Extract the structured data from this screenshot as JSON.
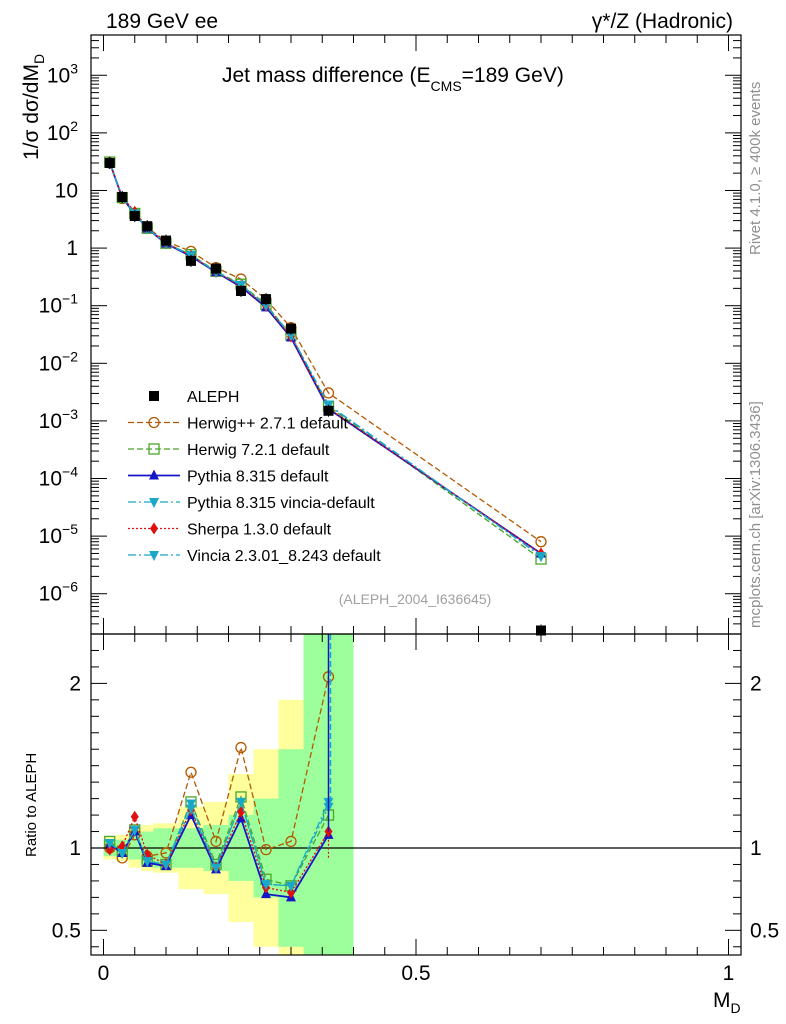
{
  "header": {
    "left": "189 GeV ee",
    "right": "γ*/Z (Hadronic)"
  },
  "side": {
    "rivet": "Rivet 4.1.0, ≥ 400k events",
    "mcplots": "mcplots.cern.ch [arXiv:1306.3436]"
  },
  "chart_data": {
    "type": "line",
    "title": "Jet mass difference (E",
    "title_sub": "CMS",
    "title_tail": "=189 GeV)",
    "watermark": "(ALEPH_2004_I636645)",
    "ylabel_main": "1/σ  dσ/dM",
    "ylabel_main_sub": "D",
    "ylabel_ratio": "Ratio to ALEPH",
    "xlabel": "M",
    "xlabel_sub": "D",
    "xlim": [
      -0.02,
      1.02
    ],
    "ylim_main": [
      2e-07,
      5000
    ],
    "ylim_ratio": [
      0.35,
      2.3
    ],
    "x_ticks": [
      "0",
      "0.5",
      "1"
    ],
    "x_tick_values": [
      0,
      0.5,
      1
    ],
    "y_ticks_main": [
      {
        "v": 1000,
        "base": "10",
        "exp": "3"
      },
      {
        "v": 100,
        "base": "10",
        "exp": "2"
      },
      {
        "v": 10,
        "base": "10",
        "exp": ""
      },
      {
        "v": 1,
        "base": "1",
        "exp": ""
      },
      {
        "v": 0.1,
        "base": "10",
        "exp": "−1"
      },
      {
        "v": 0.01,
        "base": "10",
        "exp": "−2"
      },
      {
        "v": 0.001,
        "base": "10",
        "exp": "−3"
      },
      {
        "v": 0.0001,
        "base": "10",
        "exp": "−4"
      },
      {
        "v": 1e-05,
        "base": "10",
        "exp": "−5"
      },
      {
        "v": 1e-06,
        "base": "10",
        "exp": "−6"
      }
    ],
    "y_ticks_ratio": [
      {
        "v": 0.5,
        "label": "0.5"
      },
      {
        "v": 1,
        "label": "1"
      },
      {
        "v": 2,
        "label": "2"
      }
    ],
    "x": [
      0.01,
      0.03,
      0.05,
      0.07,
      0.1,
      0.14,
      0.18,
      0.22,
      0.26,
      0.3,
      0.36,
      0.7
    ],
    "bin_edges": [
      0,
      0.02,
      0.04,
      0.06,
      0.08,
      0.12,
      0.16,
      0.2,
      0.24,
      0.28,
      0.32,
      0.4,
      1.0
    ],
    "band_inner": [
      0.05,
      0.05,
      0.07,
      0.1,
      0.12,
      0.12,
      0.14,
      0.2,
      0.3,
      0.6,
      2.0
    ],
    "band_outer": [
      0.07,
      0.08,
      0.12,
      0.14,
      0.15,
      0.25,
      0.28,
      0.45,
      0.6,
      0.9,
      2.0
    ],
    "data": {
      "name": "ALEPH",
      "values": [
        30,
        7.7,
        3.6,
        2.4,
        1.35,
        0.6,
        0.44,
        0.18,
        0.13,
        0.04,
        0.0015,
        2.3e-07
      ]
    },
    "series": [
      {
        "name": "Herwig++ 2.7.1 default",
        "color": "#b35900",
        "marker": "circle",
        "dash": "6,3",
        "ratio": [
          1.0,
          0.94,
          1.08,
          0.95,
          0.97,
          1.46,
          1.04,
          1.61,
          0.99,
          1.04,
          2.04
        ],
        "last": 8e-06
      },
      {
        "name": "Herwig 7.2.1 default",
        "color": "#4aa528",
        "marker": "square",
        "dash": "6,3",
        "ratio": [
          1.04,
          0.98,
          1.11,
          0.92,
          0.9,
          1.28,
          0.9,
          1.31,
          0.81,
          0.77,
          1.2
        ],
        "last": 4e-06
      },
      {
        "name": "Pythia 8.315 default",
        "color": "#1515c8",
        "marker": "triangle-up",
        "dash": "",
        "ratio": [
          1.02,
          0.97,
          1.1,
          0.91,
          0.89,
          1.2,
          0.87,
          1.18,
          0.72,
          0.7,
          1.08
        ],
        "last": 5e-06
      },
      {
        "name": "Pythia 8.315 vincia-default",
        "color": "#1aa8c8",
        "marker": "triangle-down",
        "dash": "8,3,2,3",
        "ratio": [
          1.03,
          0.97,
          1.11,
          0.92,
          0.9,
          1.27,
          0.88,
          1.28,
          0.78,
          0.77,
          1.25
        ],
        "last": 4.5e-06
      },
      {
        "name": "Sherpa 1.3.0 default",
        "color": "#e01010",
        "marker": "diamond",
        "dash": "2,2",
        "ratio": [
          0.99,
          1.01,
          1.19,
          0.96,
          0.9,
          1.23,
          0.88,
          1.22,
          0.76,
          0.73,
          1.1
        ],
        "last": 5e-06
      },
      {
        "name": "Vincia 2.3.01_8.243 default",
        "color": "#1aa8c8",
        "marker": "triangle-down",
        "dash": "8,3,2,3",
        "ratio": [
          1.03,
          0.97,
          1.11,
          0.92,
          0.9,
          1.24,
          0.88,
          1.28,
          0.78,
          0.77,
          1.28
        ],
        "last": 4.5e-06
      }
    ]
  }
}
